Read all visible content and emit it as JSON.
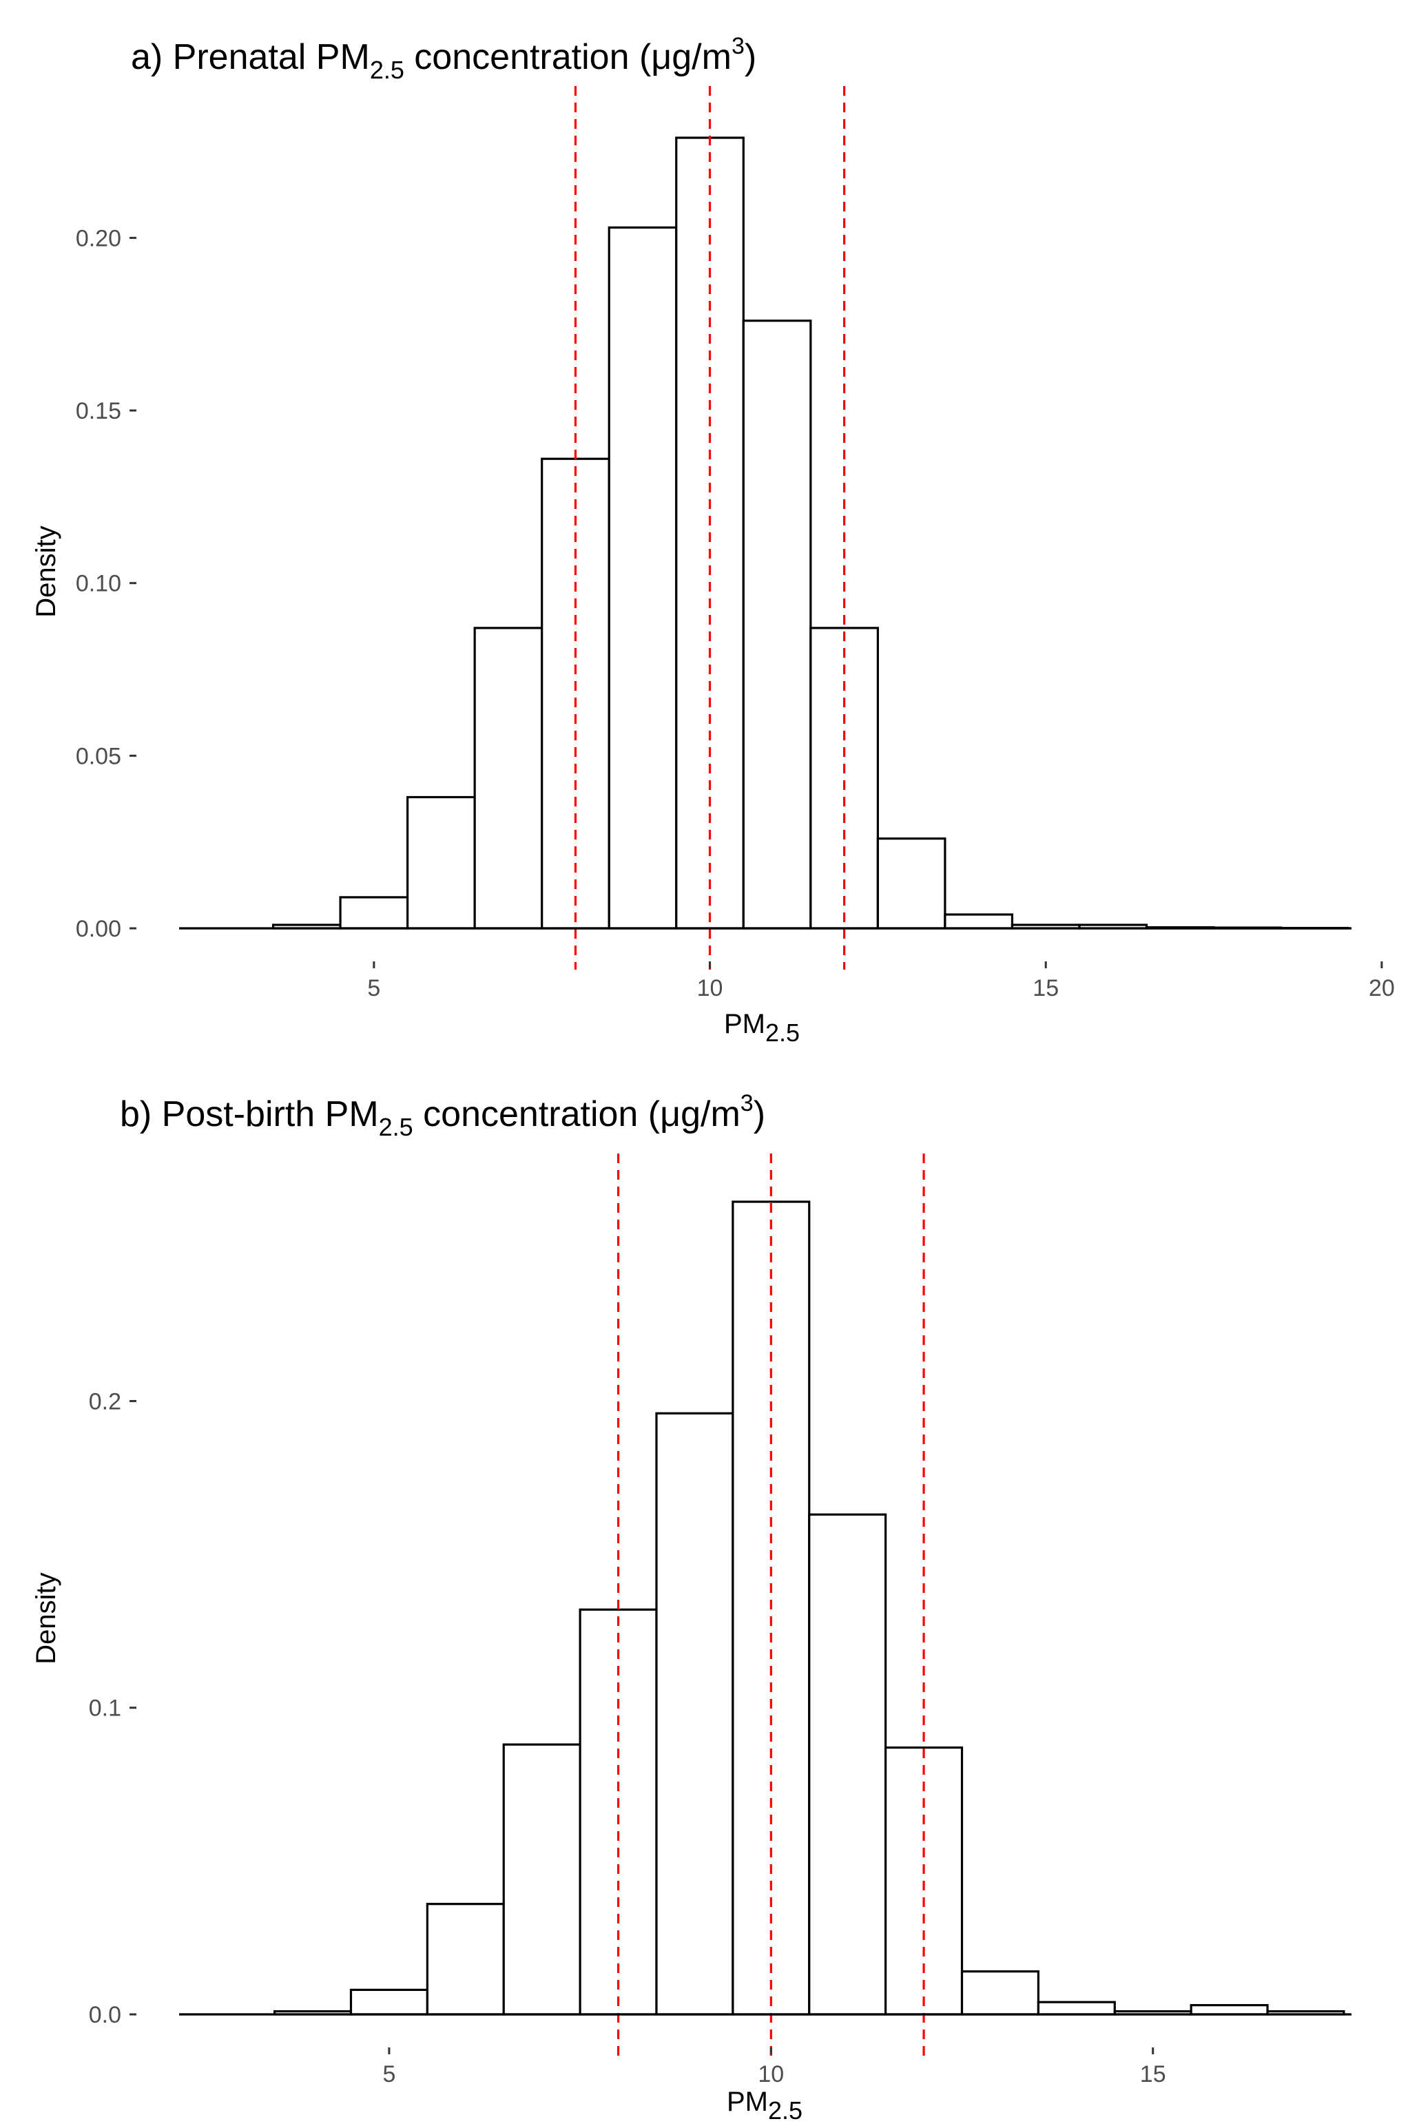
{
  "chart_data": [
    {
      "type": "bar",
      "title": {
        "prefix": "a) Prenatal PM",
        "subscript": "2.5",
        "middle": " concentration (",
        "mu": "μ",
        "unit": "g/m",
        "superscript": "3",
        "suffix": ")"
      },
      "xlabel": {
        "base": "PM",
        "subscript": "2.5"
      },
      "ylabel": "Density",
      "bin_width": 1,
      "bin_starts": [
        3.5,
        4.5,
        5.5,
        6.5,
        7.5,
        8.5,
        9.5,
        10.5,
        11.5,
        12.5,
        13.5,
        14.5,
        15.5,
        16.5,
        17.5,
        18.5
      ],
      "values": [
        0.001,
        0.009,
        0.038,
        0.087,
        0.136,
        0.203,
        0.229,
        0.176,
        0.087,
        0.026,
        0.004,
        0.001,
        0.001,
        0.0003,
        0.0002,
        0.0001
      ],
      "xlim": [
        2.1,
        19.55
      ],
      "ylim": [
        0,
        0.23
      ],
      "xticks": [
        5,
        10,
        15,
        20
      ],
      "xtick_labels": [
        "5",
        "10",
        "15",
        "20"
      ],
      "yticks": [
        0.0,
        0.05,
        0.1,
        0.15,
        0.2
      ],
      "ytick_labels": [
        "0.00",
        "0.05",
        "0.10",
        "0.15",
        "0.20"
      ],
      "reference_lines": [
        8,
        10,
        12
      ],
      "reference_color": "#ff0000"
    },
    {
      "type": "bar",
      "title": {
        "prefix": "b) Post-birth PM",
        "subscript": "2.5",
        "middle": " concentration (",
        "mu": "μ",
        "unit": "g/m",
        "superscript": "3",
        "suffix": ")"
      },
      "xlabel": {
        "base": "PM",
        "subscript": "2.5"
      },
      "ylabel": "Density",
      "bin_width": 1,
      "bin_starts": [
        3.5,
        4.5,
        5.5,
        6.5,
        7.5,
        8.5,
        9.5,
        10.5,
        11.5,
        12.5,
        13.5,
        14.5,
        15.5,
        16.5
      ],
      "values": [
        0.001,
        0.008,
        0.036,
        0.088,
        0.132,
        0.196,
        0.265,
        0.163,
        0.087,
        0.014,
        0.004,
        0.001,
        0.003,
        0.001
      ],
      "xlim": [
        2.25,
        17.6
      ],
      "ylim": [
        0,
        0.265
      ],
      "xticks": [
        5,
        10,
        15
      ],
      "xtick_labels": [
        "5",
        "10",
        "15"
      ],
      "yticks": [
        0.0,
        0.1,
        0.2
      ],
      "ytick_labels": [
        "0.0",
        "0.1",
        "0.2"
      ],
      "reference_lines": [
        8,
        10,
        12
      ],
      "reference_color": "#ff0000"
    }
  ]
}
